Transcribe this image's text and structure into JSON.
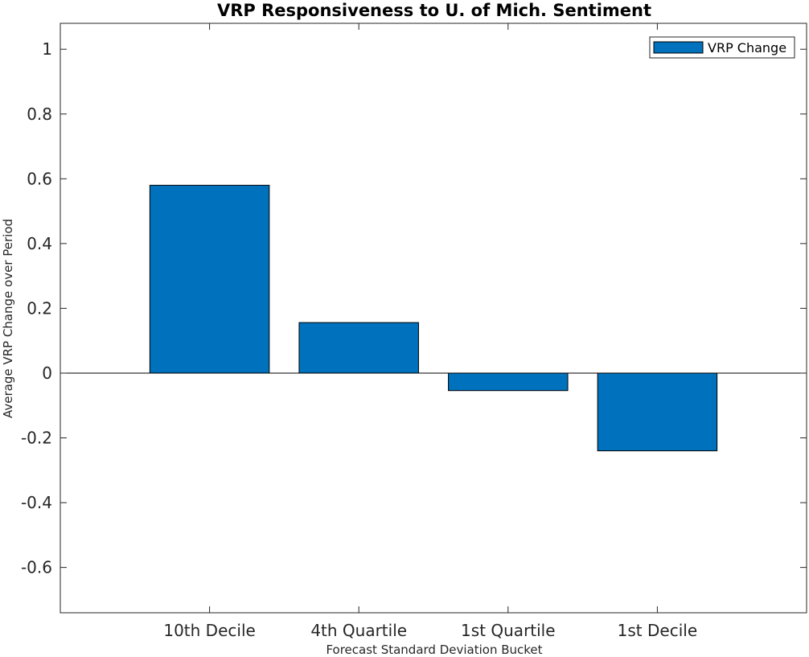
{
  "chart_data": {
    "type": "bar",
    "title": "VRP Responsiveness to U. of Mich. Sentiment",
    "xlabel": "Forecast Standard Deviation Bucket",
    "ylabel": "Average VRP Change over Period",
    "categories": [
      "10th Decile",
      "4th Quartile",
      "1st Quartile",
      "1st Decile"
    ],
    "series": [
      {
        "name": "VRP Change",
        "values": [
          0.58,
          0.156,
          -0.054,
          -0.24
        ]
      }
    ],
    "ylim": [
      -0.74,
      1.08
    ],
    "yticks": [
      1,
      0.8,
      0.6,
      0.4,
      0.2,
      0,
      -0.2,
      -0.4,
      -0.6
    ],
    "ytick_labels": [
      "1",
      "0.8",
      "0.6",
      "0.4",
      "0.2",
      "0",
      "-0.2",
      "-0.4",
      "-0.6"
    ],
    "xlim": [
      0,
      5
    ],
    "grid": false,
    "legend": {
      "position": "top-right"
    },
    "colors": {
      "bar": "#0072BD",
      "edge": "#000000",
      "axis": "#262626"
    }
  }
}
